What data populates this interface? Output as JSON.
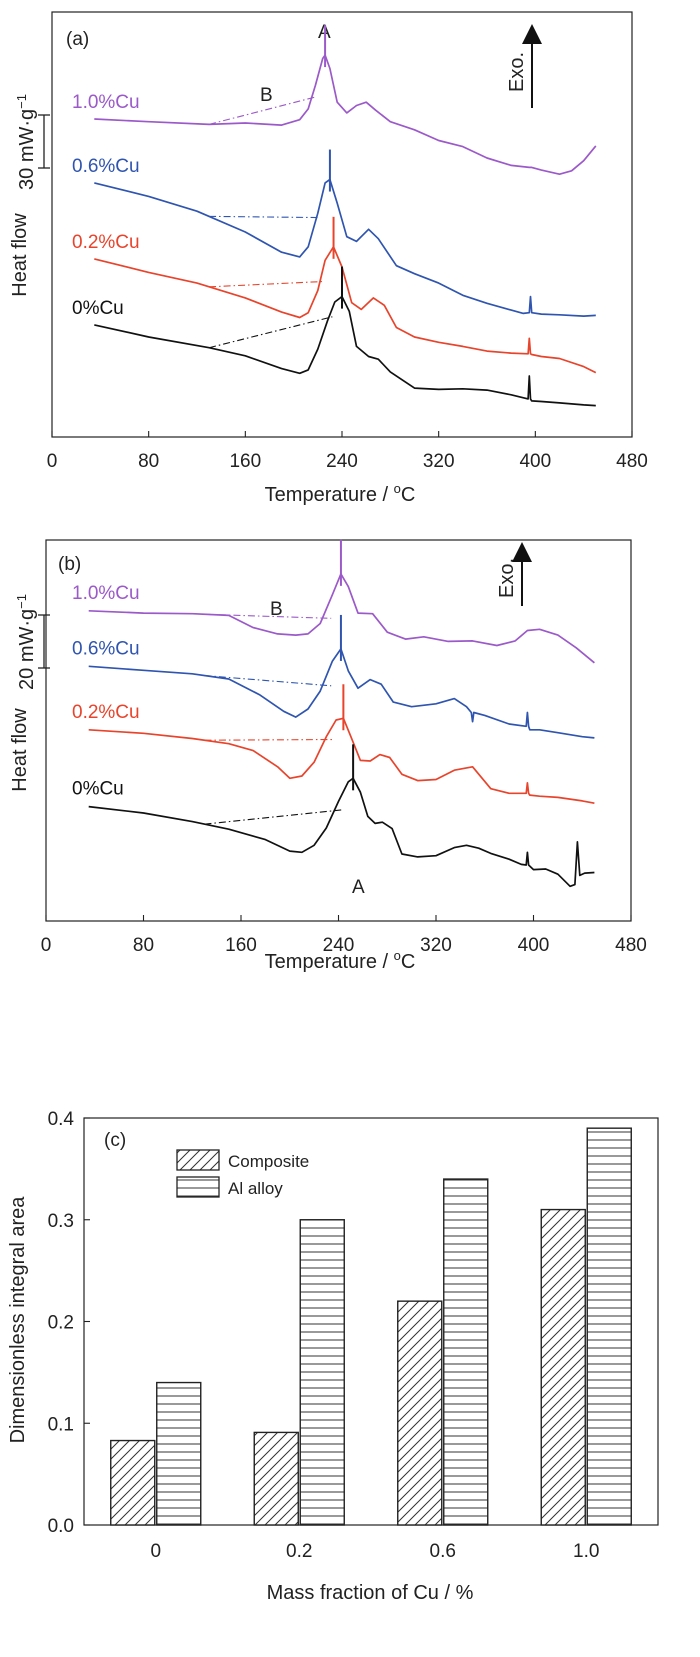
{
  "colors": {
    "cu10": "#9b59c9",
    "cu06": "#2f55b0",
    "cu02": "#e8442c",
    "cu0": "#111111"
  },
  "chart_data": [
    {
      "type": "line",
      "panel_label": "(a)",
      "xlabel": "Temperature / °C",
      "ylabel": "Heat flow",
      "xlim": [
        0,
        480
      ],
      "xticks": [
        "0",
        "80",
        "160",
        "240",
        "320",
        "400",
        "480"
      ],
      "scale_bar_label": "30 mW·g⁻¹",
      "exo_label": "Exo.",
      "annotations": [
        "A",
        "B"
      ],
      "series": [
        {
          "name": "1.0%Cu",
          "color_key": "cu10",
          "peak_x": 226,
          "x": [
            35,
            80,
            130,
            160,
            190,
            205,
            212,
            218,
            224,
            226,
            230,
            236,
            244,
            252,
            260,
            268,
            280,
            300,
            320,
            340,
            360,
            380,
            395,
            396,
            397,
            405,
            420,
            430,
            440,
            450
          ],
          "y": [
            44,
            43.6,
            43.2,
            43.4,
            43.1,
            43.9,
            45.5,
            49,
            53,
            53.5,
            51.5,
            46.5,
            44.9,
            46,
            46.5,
            45.3,
            43.6,
            42.4,
            40.8,
            39.9,
            38.2,
            37.1,
            36.8,
            36.8,
            36.8,
            36.4,
            35.8,
            36.3,
            37.8,
            40
          ]
        },
        {
          "name": "0.6%Cu",
          "color_key": "cu06",
          "peak_x": 230,
          "x": [
            35,
            80,
            120,
            160,
            190,
            205,
            212,
            220,
            226,
            230,
            236,
            244,
            252,
            262,
            270,
            285,
            300,
            320,
            340,
            360,
            380,
            390,
            395,
            396,
            397,
            405,
            420,
            440,
            450
          ],
          "y": [
            34.5,
            32.5,
            30.3,
            27.2,
            24.2,
            23.5,
            25,
            30,
            34.5,
            35,
            31.5,
            26.5,
            25.8,
            27.6,
            26.2,
            22.2,
            21,
            19.6,
            17.8,
            16.6,
            15.6,
            15.1,
            15.2,
            17.6,
            15.2,
            15,
            14.9,
            14.7,
            14.8
          ]
        },
        {
          "name": "0.2%Cu",
          "color_key": "cu02",
          "peak_x": 233,
          "x": [
            35,
            80,
            120,
            160,
            190,
            205,
            212,
            220,
            226,
            233,
            240,
            248,
            256,
            266,
            275,
            285,
            300,
            320,
            340,
            360,
            380,
            394,
            395,
            396,
            397,
            405,
            420,
            440,
            450
          ],
          "y": [
            23.2,
            21.2,
            19.6,
            17.4,
            15.3,
            14.5,
            15.2,
            18.5,
            23,
            25,
            22,
            16.7,
            15.7,
            17.4,
            16.3,
            13,
            11.6,
            10.8,
            10.2,
            9.5,
            9.2,
            9.1,
            11.4,
            9.1,
            9,
            8.7,
            8.4,
            7.2,
            6.3
          ]
        },
        {
          "name": "0%Cu",
          "color_key": "cu0",
          "peak_x": 240,
          "x": [
            35,
            80,
            130,
            160,
            190,
            205,
            212,
            220,
            228,
            234,
            240,
            246,
            252,
            262,
            270,
            280,
            300,
            320,
            340,
            360,
            380,
            394,
            395,
            396,
            397,
            405,
            420,
            440,
            450
          ],
          "y": [
            13.4,
            11.6,
            10,
            8.8,
            6.9,
            6.2,
            6.7,
            9.8,
            14,
            16.8,
            17.6,
            15.4,
            10.2,
            8.7,
            8.3,
            6.4,
            4,
            3.8,
            3.9,
            3.7,
            3,
            2.4,
            5.8,
            2.4,
            2.1,
            2,
            1.8,
            1.5,
            1.4
          ]
        }
      ]
    },
    {
      "type": "line",
      "panel_label": "(b)",
      "xlabel": "Temperature / °C",
      "ylabel": "Heat flow",
      "xlim": [
        0,
        480
      ],
      "xticks": [
        "0",
        "80",
        "160",
        "240",
        "320",
        "400",
        "480"
      ],
      "scale_bar_label": "20 mW·g⁻¹",
      "exo_label": "Exo.",
      "annotations": [
        "A",
        "B"
      ],
      "series": [
        {
          "name": "1.0%Cu",
          "color_key": "cu10",
          "peak_x": 242,
          "x": [
            35,
            80,
            120,
            150,
            170,
            190,
            205,
            215,
            225,
            235,
            242,
            248,
            256,
            268,
            280,
            295,
            310,
            330,
            350,
            370,
            385,
            395,
            405,
            420,
            435,
            450
          ],
          "y": [
            43.2,
            42.8,
            42.7,
            42.4,
            40.3,
            39.2,
            39,
            39.2,
            41,
            46,
            49.6,
            47.4,
            42.8,
            42.7,
            39.5,
            38.3,
            38.7,
            37.9,
            38,
            37.2,
            38,
            39.8,
            40,
            39,
            36.8,
            34.2
          ]
        },
        {
          "name": "0.6%Cu",
          "color_key": "cu06",
          "peak_x": 242,
          "x": [
            35,
            80,
            120,
            150,
            175,
            195,
            205,
            215,
            225,
            235,
            242,
            248,
            256,
            266,
            275,
            285,
            300,
            320,
            335,
            345,
            349,
            350,
            351,
            360,
            380,
            394,
            395,
            396,
            397,
            405,
            420,
            440,
            450
          ],
          "y": [
            33.6,
            32.9,
            32.3,
            31.4,
            28.7,
            25.8,
            24.8,
            26.2,
            29.3,
            34.5,
            36.6,
            32.8,
            29.8,
            31.3,
            30.5,
            27.4,
            26.6,
            27.1,
            28,
            26.6,
            25.6,
            24,
            25.6,
            25.1,
            23.6,
            23.2,
            25.6,
            23.2,
            22.6,
            22.6,
            22.1,
            21.4,
            21.2
          ]
        },
        {
          "name": "0.2%Cu",
          "color_key": "cu02",
          "peak_x": 244,
          "x": [
            35,
            80,
            120,
            150,
            170,
            190,
            200,
            210,
            220,
            230,
            238,
            244,
            250,
            258,
            266,
            274,
            282,
            292,
            305,
            320,
            335,
            350,
            365,
            380,
            394,
            395,
            396,
            397,
            405,
            420,
            440,
            450
          ],
          "y": [
            22.6,
            22,
            21.1,
            20.2,
            19,
            16.2,
            14.2,
            14.6,
            17,
            21.4,
            24.3,
            24.6,
            21.5,
            17.3,
            17.2,
            18.3,
            17.8,
            14.9,
            13.8,
            14,
            15.6,
            16.2,
            12.4,
            11.6,
            11.6,
            13.4,
            11.6,
            11.3,
            11.1,
            10.9,
            10.3,
            9.9
          ]
        },
        {
          "name": "0%Cu",
          "color_key": "cu0",
          "peak_x": 252,
          "x": [
            35,
            80,
            120,
            150,
            180,
            200,
            210,
            220,
            230,
            240,
            248,
            252,
            258,
            264,
            270,
            276,
            284,
            292,
            305,
            320,
            335,
            345,
            355,
            365,
            380,
            390,
            394,
            395,
            396,
            400,
            410,
            420,
            430,
            434,
            436,
            438,
            442,
            450
          ],
          "y": [
            9.3,
            8.2,
            6.7,
            5.4,
            3.6,
            1.6,
            1.4,
            2.6,
            5.6,
            10.2,
            13.6,
            14.2,
            11.8,
            7.6,
            6.4,
            6.6,
            5.5,
            1.1,
            0.6,
            0.8,
            2.2,
            2.6,
            2.1,
            1.2,
            0.2,
            -0.7,
            -0.8,
            1.4,
            -0.8,
            -1.6,
            -1.5,
            -2.4,
            -4.5,
            -4.2,
            3.2,
            -2.6,
            -2.2,
            -2.1
          ]
        }
      ]
    },
    {
      "type": "bar",
      "panel_label": "(c)",
      "xlabel": "Mass fraction of Cu / %",
      "ylabel": "Dimensionless integral area",
      "categories": [
        "0",
        "0.2",
        "0.6",
        "1.0"
      ],
      "ylim": [
        0,
        0.4
      ],
      "yticks": [
        "0.0",
        "0.1",
        "0.2",
        "0.3",
        "0.4"
      ],
      "legend_position": "top-left",
      "series": [
        {
          "name": "Composite",
          "pattern": "diagonal",
          "values": [
            0.083,
            0.091,
            0.22,
            0.31
          ]
        },
        {
          "name": "Al alloy",
          "pattern": "horizontal",
          "values": [
            0.14,
            0.3,
            0.34,
            0.39
          ]
        }
      ]
    }
  ]
}
